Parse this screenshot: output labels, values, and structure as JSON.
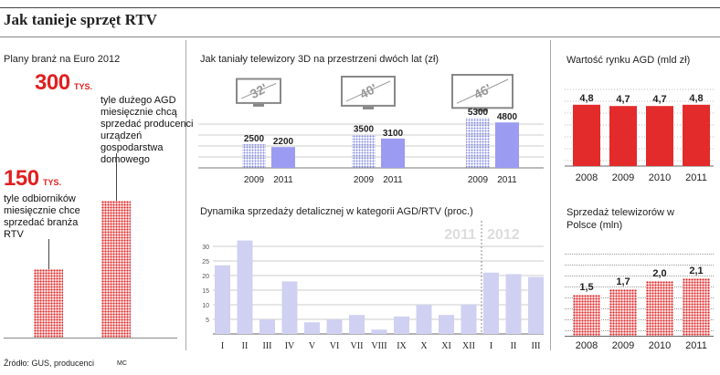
{
  "page": {
    "title": "Jak tanieje sprzęt RTV",
    "source": "Źródło: GUS, producenci",
    "author": "MC"
  },
  "chart_data": [
    {
      "id": "euro",
      "type": "bar",
      "title": "Plany branż na Euro 2012",
      "unit": "TYS.",
      "categories": [
        "RTV",
        "AGD"
      ],
      "values": [
        150,
        300
      ],
      "labels": [
        "150",
        "300"
      ],
      "descriptions": [
        "tyle odbiorników miesięcznie chce sprzedać branża RTV",
        "tyle dużego AGD miesięcznie chcą sprzedać producenci urządzeń gospodarstwa domowego"
      ],
      "colors": [
        "#e02020"
      ]
    },
    {
      "id": "tv3d",
      "type": "bar",
      "title": "Jak taniały telewizory 3D na przestrzeni dwóch lat (zł)",
      "groups": [
        {
          "size": "32'",
          "categories": [
            "2009",
            "2011"
          ],
          "values": [
            2500,
            2200
          ]
        },
        {
          "size": "40'",
          "categories": [
            "2009",
            "2011"
          ],
          "values": [
            3500,
            3100
          ]
        },
        {
          "size": "46'",
          "categories": [
            "2009",
            "2011"
          ],
          "values": [
            5300,
            4800
          ]
        }
      ],
      "colors": [
        "#7f86e6",
        "#9c9bf2"
      ]
    },
    {
      "id": "agd_market",
      "type": "bar",
      "title": "Wartość rynku AGD (mld zł)",
      "categories": [
        "2008",
        "2009",
        "2010",
        "2011"
      ],
      "values": [
        4.8,
        4.7,
        4.7,
        4.8
      ],
      "labels": [
        "4,8",
        "4,7",
        "4,7",
        "4,8"
      ],
      "colors": [
        "#e32b2b"
      ]
    },
    {
      "id": "dynamics",
      "type": "bar",
      "title": "Dynamika sprzedaży detalicznej w kategorii AGD/RTV (proc.)",
      "periods": [
        "2011",
        "2012"
      ],
      "categories": [
        "I",
        "II",
        "III",
        "IV",
        "V",
        "VI",
        "VII",
        "VIII",
        "IX",
        "X",
        "XI",
        "XII",
        "I",
        "II",
        "III"
      ],
      "values": [
        23.5,
        32,
        5,
        18,
        4,
        5,
        6.5,
        1.5,
        6,
        10,
        6.5,
        10,
        21,
        20.5,
        19.5
      ],
      "yticks": [
        5,
        10,
        15,
        20,
        25,
        30
      ],
      "ylim": [
        0,
        35
      ],
      "colors": [
        "#d0d0f2"
      ]
    },
    {
      "id": "tv_sales",
      "type": "bar",
      "title": "Sprzedaż telewizorów w Polsce (mln)",
      "categories": [
        "2008",
        "2009",
        "2010",
        "2011"
      ],
      "values": [
        1.5,
        1.7,
        2.0,
        2.1
      ],
      "labels": [
        "1,5",
        "1,7",
        "2,0",
        "2,1"
      ],
      "colors": [
        "#e02020"
      ]
    }
  ]
}
